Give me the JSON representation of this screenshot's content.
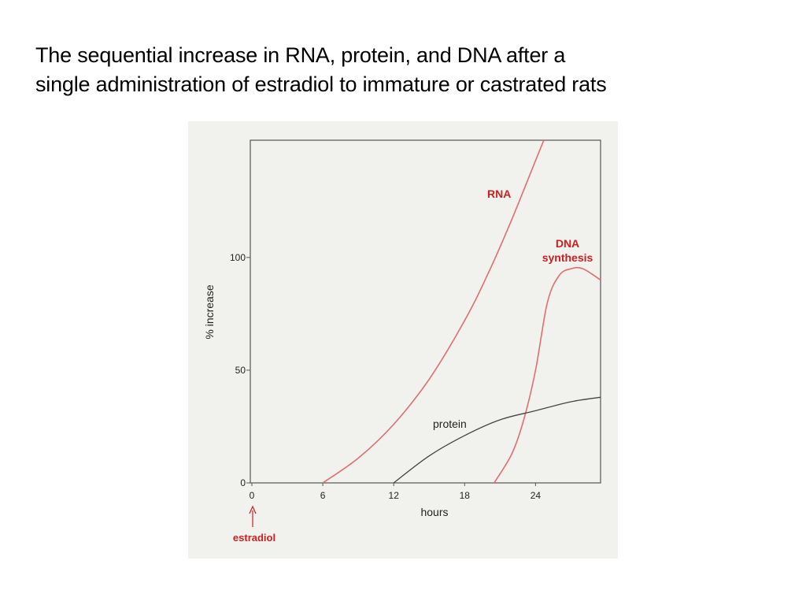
{
  "slide": {
    "title_line1": "The sequential increase in RNA, protein, and DNA after a",
    "title_line2": "single administration of estradiol to immature or castrated rats"
  },
  "colors": {
    "rna": "#e06e6e",
    "dna": "#e06e6e",
    "protein": "#444444",
    "label_red": "#cc1f1f",
    "axis": "#555555"
  },
  "chart_data": {
    "type": "line",
    "xlabel": "hours",
    "ylabel": "% increase",
    "xlim": [
      0,
      29.5
    ],
    "ylim": [
      0,
      152
    ],
    "x_ticks": [
      "0",
      "6",
      "12",
      "18",
      "24"
    ],
    "y_ticks": [
      "0",
      "50",
      "100"
    ],
    "grid": false,
    "series": [
      {
        "name": "RNA",
        "color": "#e06e6e",
        "points": [
          [
            6,
            0
          ],
          [
            9,
            11
          ],
          [
            12,
            26
          ],
          [
            15,
            46
          ],
          [
            18,
            72
          ],
          [
            20,
            93
          ],
          [
            22,
            117
          ],
          [
            24,
            143
          ],
          [
            24.7,
            152
          ]
        ]
      },
      {
        "name": "DNA synthesis",
        "color": "#e06e6e",
        "points": [
          [
            20.5,
            0
          ],
          [
            22,
            13
          ],
          [
            23,
            28
          ],
          [
            24,
            50
          ],
          [
            25,
            80
          ],
          [
            26,
            92
          ],
          [
            27,
            95
          ],
          [
            28,
            95
          ],
          [
            29.5,
            90
          ]
        ]
      },
      {
        "name": "protein",
        "color": "#444444",
        "points": [
          [
            12,
            0
          ],
          [
            15,
            12
          ],
          [
            18,
            21
          ],
          [
            21,
            28
          ],
          [
            24,
            32
          ],
          [
            27,
            36
          ],
          [
            29.5,
            38
          ]
        ]
      }
    ],
    "series_labels": {
      "rna": "RNA",
      "dna_line1": "DNA",
      "dna_line2": "synthesis",
      "protein": "protein"
    },
    "annotation": {
      "text": "estradiol",
      "at_x": 0
    }
  }
}
